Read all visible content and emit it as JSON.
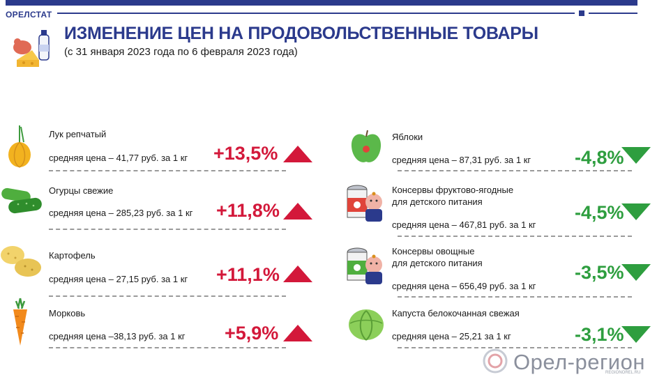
{
  "header": {
    "brand": "ОРЕЛСТАТ",
    "title": "ИЗМЕНЕНИЕ ЦЕН НА ПРОДОВОЛЬСТВЕННЫЕ ТОВАРЫ",
    "subtitle": "(с 31 января 2023 года по 6 февраля 2023 года)"
  },
  "left_items": [
    {
      "name": "Лук репчатый",
      "price": "средняя цена – 41,77 руб. за 1 кг",
      "change": "+13,5%",
      "direction": "up",
      "icon": "onion-icon"
    },
    {
      "name": "Огурцы свежие",
      "price": "средняя цена – 285,23 руб. за 1 кг",
      "change": "+11,8%",
      "direction": "up",
      "icon": "cucumber-icon"
    },
    {
      "name": "Картофель",
      "price": "средняя цена – 27,15 руб. за 1 кг",
      "change": "+11,1%",
      "direction": "up",
      "icon": "potato-icon"
    },
    {
      "name": "Морковь",
      "price": "средняя цена –38,13 руб. за 1 кг",
      "change": "+5,9%",
      "direction": "up",
      "icon": "carrot-icon"
    }
  ],
  "right_items": [
    {
      "name": "Яблоки",
      "name2": "",
      "price": "средняя цена – 87,31 руб. за 1 кг",
      "change": "-4,8%",
      "direction": "down",
      "icon": "apple-icon"
    },
    {
      "name": "Консервы фруктово-ягодные",
      "name2": "для детского питания",
      "price": "средняя цена –  467,81 руб. за  1 кг",
      "change": "-4,5%",
      "direction": "down",
      "icon": "baby-food-can-icon"
    },
    {
      "name": "Консервы овощные",
      "name2": "для детского питания",
      "price": "средняя цена – 656,49 руб. за 1 кг",
      "change": "-3,5%",
      "direction": "down",
      "icon": "baby-food-can-icon"
    },
    {
      "name": "Капуста белокочанная свежая",
      "name2": "",
      "price": "средняя цена – 25,21 за 1 кг",
      "change": "-3,1%",
      "direction": "down",
      "icon": "cabbage-icon"
    }
  ],
  "watermark": {
    "text": "Орел-регион",
    "sub": "REGIONOREL.RU"
  },
  "colors": {
    "brand": "#2b3a8c",
    "up": "#d3183a",
    "down": "#2e9e3f"
  }
}
